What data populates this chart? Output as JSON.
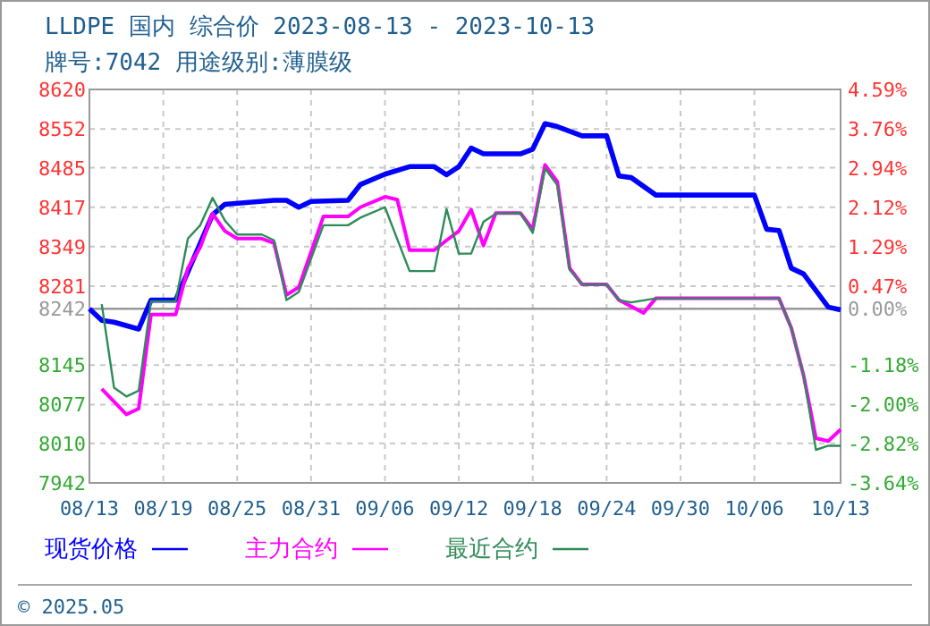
{
  "chart_data": {
    "type": "line",
    "title": "LLDPE 国内 综合价 2023-08-13 - 2023-10-13",
    "subtitle": "牌号:7042 用途级别:薄膜级",
    "xlim": [
      "2023-08-13",
      "2023-10-13"
    ],
    "xticks": [
      {
        "value": "2023-08-13",
        "label": "08/13"
      },
      {
        "value": "2023-08-19",
        "label": "08/19"
      },
      {
        "value": "2023-08-25",
        "label": "08/25"
      },
      {
        "value": "2023-08-31",
        "label": "08/31"
      },
      {
        "value": "2023-09-06",
        "label": "09/06"
      },
      {
        "value": "2023-09-12",
        "label": "09/12"
      },
      {
        "value": "2023-09-18",
        "label": "09/18"
      },
      {
        "value": "2023-09-24",
        "label": "09/24"
      },
      {
        "value": "2023-09-30",
        "label": "09/30"
      },
      {
        "value": "2023-10-06",
        "label": "10/06"
      },
      {
        "value": "2023-10-13",
        "label": "10/13"
      }
    ],
    "ylim": [
      7942,
      8620
    ],
    "yticks": [
      7942,
      8010,
      8077,
      8145,
      8242,
      8281,
      8349,
      8417,
      8485,
      8552,
      8620
    ],
    "y2lim": [
      -3.64,
      4.59
    ],
    "y2ticks": [
      {
        "value": -3.64,
        "label": "-3.64%"
      },
      {
        "value": -2.82,
        "label": "-2.82%"
      },
      {
        "value": -2.0,
        "label": "-2.00%"
      },
      {
        "value": -1.18,
        "label": "-1.18%"
      },
      {
        "value": 0,
        "label": "0.00%"
      },
      {
        "value": 0.47,
        "label": "0.47%"
      },
      {
        "value": 1.29,
        "label": "1.29%"
      },
      {
        "value": 2.12,
        "label": "2.12%"
      },
      {
        "value": 2.94,
        "label": "2.94%"
      },
      {
        "value": 3.76,
        "label": "3.76%"
      },
      {
        "value": 4.59,
        "label": "4.59%"
      }
    ],
    "ref_lines": [
      {
        "axis": "y",
        "value": 8242,
        "color": "#999999"
      }
    ],
    "grid": true,
    "legend": "bottom",
    "marker": "none",
    "line_style": "solid",
    "annotations": [
      "© 2025.05"
    ],
    "series": [
      {
        "name": "现货价格",
        "color": "#0000ff",
        "x": [
          "2023-08-13",
          "2023-08-14",
          "2023-08-15",
          "2023-08-17",
          "2023-08-18",
          "2023-08-20",
          "2023-08-23",
          "2023-08-24",
          "2023-08-28",
          "2023-08-29",
          "2023-08-30",
          "2023-08-31",
          "2023-09-03",
          "2023-09-04",
          "2023-09-06",
          "2023-09-08",
          "2023-09-10",
          "2023-09-11",
          "2023-09-12",
          "2023-09-13",
          "2023-09-14",
          "2023-09-17",
          "2023-09-18",
          "2023-09-19",
          "2023-09-20",
          "2023-09-22",
          "2023-09-24",
          "2023-09-25",
          "2023-09-26",
          "2023-09-28",
          "2023-10-06",
          "2023-10-07",
          "2023-10-08",
          "2023-10-09",
          "2023-10-10",
          "2023-10-12",
          "2023-10-13"
        ],
        "values": [
          8242,
          8222,
          8219,
          8207,
          8257,
          8257,
          8404,
          8422,
          8429,
          8429,
          8417,
          8427,
          8429,
          8456,
          8474,
          8487,
          8487,
          8473,
          8487,
          8519,
          8509,
          8509,
          8517,
          8561,
          8556,
          8540,
          8540,
          8471,
          8468,
          8438,
          8438,
          8379,
          8377,
          8312,
          8302,
          8245,
          8240
        ]
      },
      {
        "name": "主力合约",
        "color": "#ff00ff",
        "x": [
          "2023-08-14",
          "2023-08-16",
          "2023-08-17",
          "2023-08-18",
          "2023-08-20",
          "2023-08-21",
          "2023-08-22",
          "2023-08-23",
          "2023-08-24",
          "2023-08-25",
          "2023-08-27",
          "2023-08-28",
          "2023-08-29",
          "2023-08-30",
          "2023-09-01",
          "2023-09-03",
          "2023-09-04",
          "2023-09-06",
          "2023-09-07",
          "2023-09-08",
          "2023-09-10",
          "2023-09-11",
          "2023-09-12",
          "2023-09-13",
          "2023-09-14",
          "2023-09-15",
          "2023-09-17",
          "2023-09-18",
          "2023-09-19",
          "2023-09-20",
          "2023-09-21",
          "2023-09-22",
          "2023-09-24",
          "2023-09-25",
          "2023-09-27",
          "2023-09-28",
          "2023-10-08",
          "2023-10-09",
          "2023-10-10",
          "2023-10-11",
          "2023-10-12",
          "2023-10-13"
        ],
        "values": [
          8104,
          8060,
          8070,
          8232,
          8232,
          8312,
          8348,
          8406,
          8376,
          8363,
          8363,
          8355,
          8266,
          8279,
          8401,
          8401,
          8417,
          8435,
          8430,
          8343,
          8343,
          8360,
          8376,
          8413,
          8351,
          8407,
          8407,
          8379,
          8490,
          8461,
          8312,
          8284,
          8284,
          8257,
          8235,
          8260,
          8260,
          8209,
          8127,
          8019,
          8014,
          8034
        ]
      },
      {
        "name": "最近合约",
        "color": "#2e8b57",
        "x": [
          "2023-08-14",
          "2023-08-15",
          "2023-08-16",
          "2023-08-17",
          "2023-08-18",
          "2023-08-20",
          "2023-08-21",
          "2023-08-22",
          "2023-08-23",
          "2023-08-24",
          "2023-08-25",
          "2023-08-27",
          "2023-08-28",
          "2023-08-29",
          "2023-08-30",
          "2023-09-01",
          "2023-09-03",
          "2023-09-04",
          "2023-09-06",
          "2023-09-08",
          "2023-09-10",
          "2023-09-11",
          "2023-09-12",
          "2023-09-13",
          "2023-09-14",
          "2023-09-15",
          "2023-09-17",
          "2023-09-18",
          "2023-09-19",
          "2023-09-20",
          "2023-09-21",
          "2023-09-22",
          "2023-09-24",
          "2023-09-25",
          "2023-09-26",
          "2023-09-28",
          "2023-10-08",
          "2023-10-09",
          "2023-10-10",
          "2023-10-11",
          "2023-10-12",
          "2023-10-13"
        ],
        "values": [
          8250,
          8106,
          8091,
          8101,
          8255,
          8255,
          8363,
          8386,
          8433,
          8394,
          8370,
          8370,
          8360,
          8257,
          8271,
          8386,
          8386,
          8399,
          8417,
          8307,
          8307,
          8414,
          8337,
          8337,
          8392,
          8406,
          8407,
          8373,
          8484,
          8455,
          8309,
          8284,
          8284,
          8257,
          8253,
          8260,
          8260,
          8209,
          8127,
          7999,
          8006,
          8006
        ]
      }
    ]
  }
}
